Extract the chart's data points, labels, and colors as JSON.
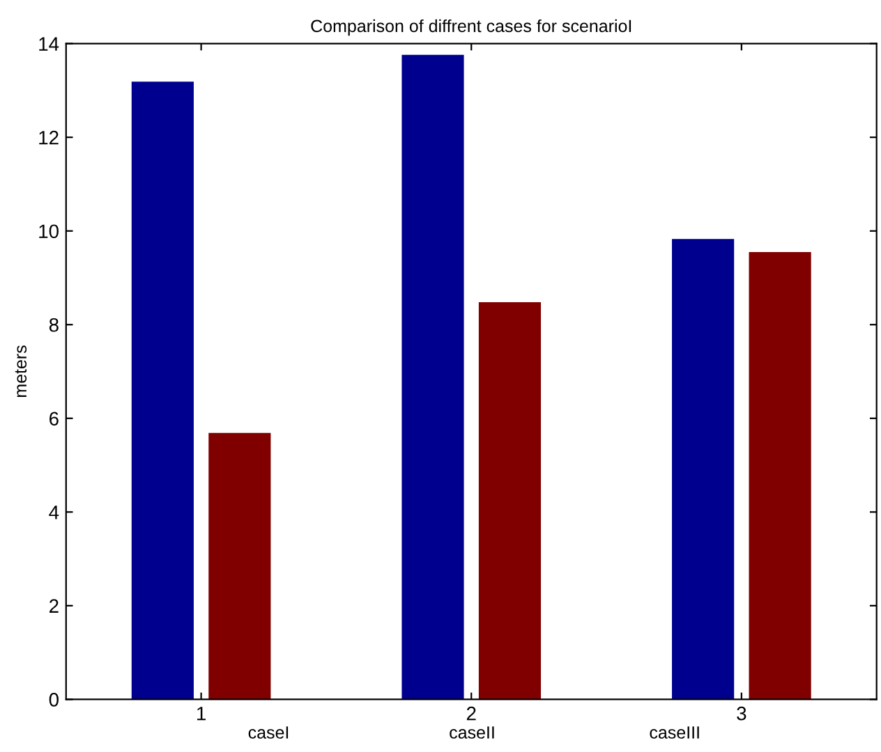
{
  "chart_data": {
    "type": "bar",
    "title": "Comparison of diffrent cases for scenarioI",
    "ylabel": "meters",
    "x": [
      1,
      2,
      3
    ],
    "xlim": [
      0.5,
      3.5
    ],
    "xticks": [
      1,
      2,
      3
    ],
    "ylim": [
      0,
      14
    ],
    "yticks": [
      0,
      2,
      4,
      6,
      8,
      10,
      12,
      14
    ],
    "series": [
      {
        "color": "#00008f",
        "values": [
          13.19,
          13.76,
          9.83
        ]
      },
      {
        "color": "#800000",
        "values": [
          5.69,
          8.48,
          9.55
        ]
      }
    ],
    "annotations": [
      "caseI",
      "caseII",
      "caseIII"
    ]
  }
}
